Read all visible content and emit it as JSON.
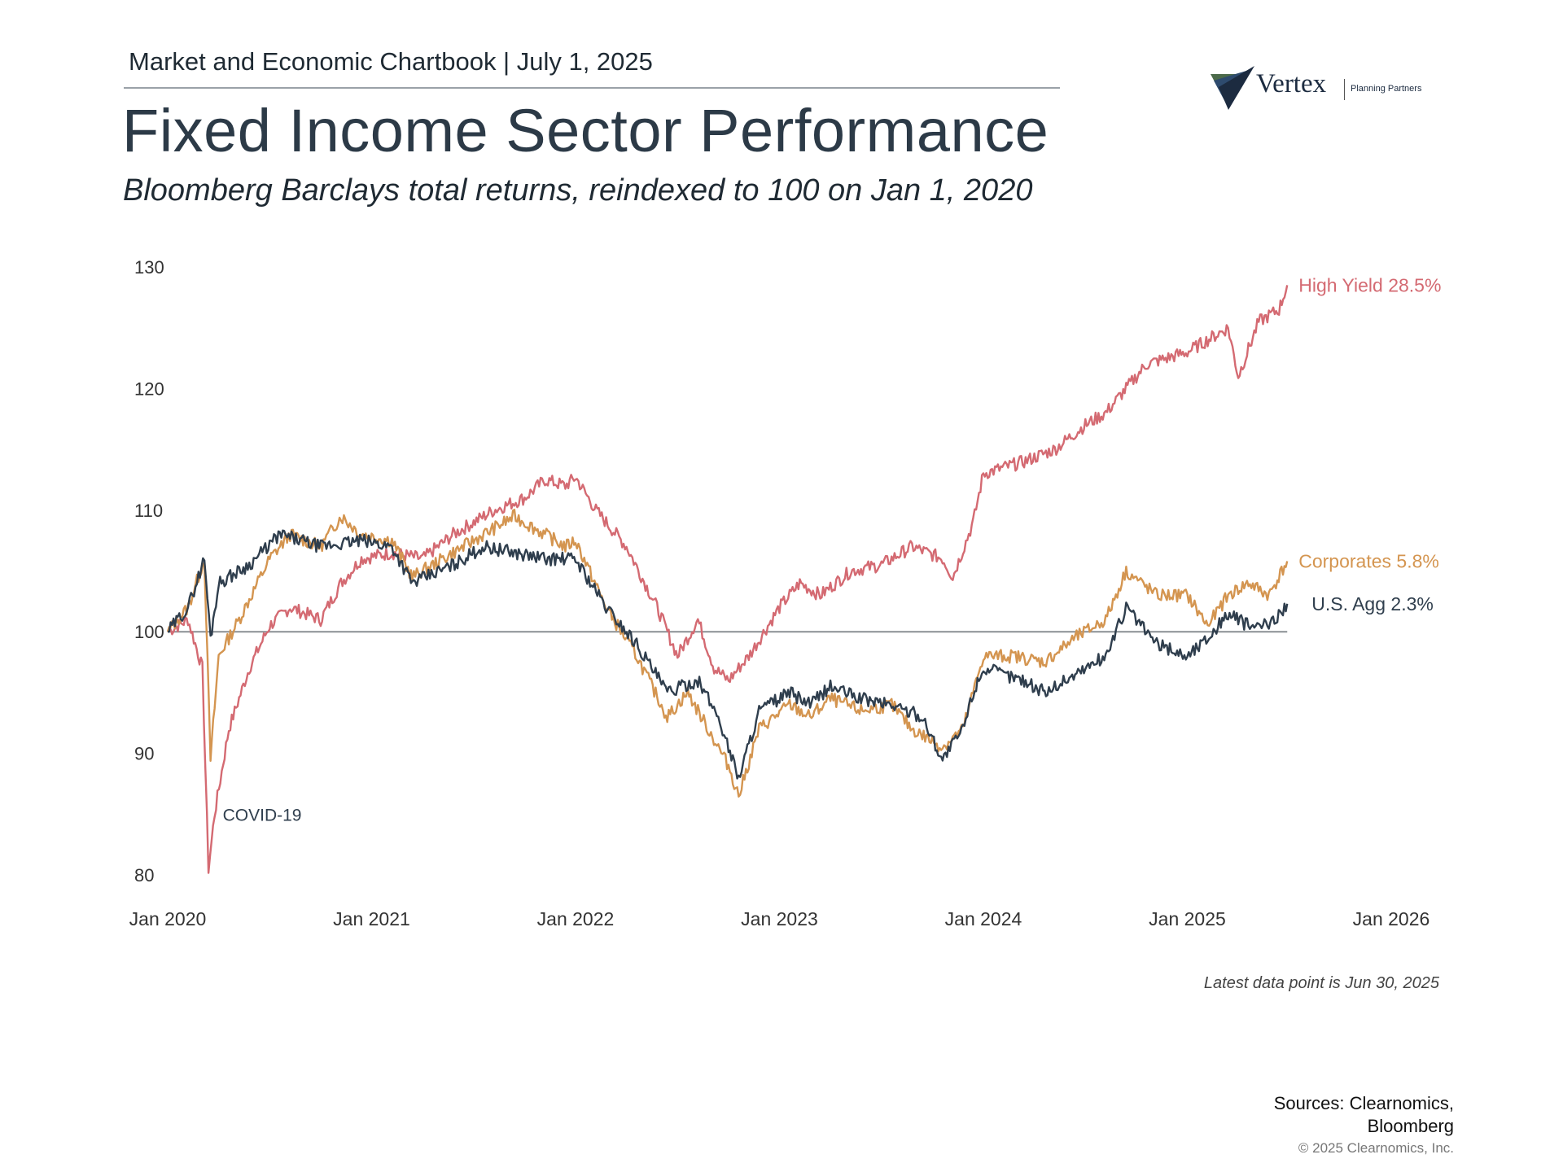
{
  "header": {
    "chartbook": "Market and Economic Chartbook | July 1, 2025",
    "title": "Fixed Income Sector Performance",
    "subtitle": "Bloomberg Barclays total returns, reindexed to 100 on Jan 1, 2020"
  },
  "logo": {
    "name": "Vertex",
    "tagline": "Planning Partners"
  },
  "chart_data": {
    "type": "line",
    "xlim": [
      2020.0,
      2026.0
    ],
    "ylim": [
      80,
      130
    ],
    "yticks": [
      "130",
      "120",
      "110",
      "100",
      "90",
      "80"
    ],
    "xticks": [
      {
        "x": 2020.0,
        "label": "Jan 2020"
      },
      {
        "x": 2021.0,
        "label": "Jan 2021"
      },
      {
        "x": 2022.0,
        "label": "Jan 2022"
      },
      {
        "x": 2023.0,
        "label": "Jan 2023"
      },
      {
        "x": 2024.0,
        "label": "Jan 2024"
      },
      {
        "x": 2025.0,
        "label": "Jan 2025"
      },
      {
        "x": 2026.0,
        "label": "Jan 2026"
      }
    ],
    "baseline": 100,
    "series": [
      {
        "name": "High Yield 28.5%",
        "color": "#d46a72",
        "points": [
          [
            2020.0,
            100
          ],
          [
            2020.1,
            101
          ],
          [
            2020.17,
            97
          ],
          [
            2020.2,
            80.5
          ],
          [
            2020.23,
            85
          ],
          [
            2020.3,
            92
          ],
          [
            2020.4,
            97
          ],
          [
            2020.5,
            100.5
          ],
          [
            2020.6,
            102
          ],
          [
            2020.75,
            101
          ],
          [
            2020.85,
            104
          ],
          [
            2020.95,
            106
          ],
          [
            2021.1,
            106.5
          ],
          [
            2021.25,
            106
          ],
          [
            2021.4,
            108
          ],
          [
            2021.6,
            110
          ],
          [
            2021.75,
            111
          ],
          [
            2021.85,
            112.5
          ],
          [
            2021.95,
            112
          ],
          [
            2022.0,
            112.7
          ],
          [
            2022.1,
            110
          ],
          [
            2022.25,
            107
          ],
          [
            2022.4,
            102
          ],
          [
            2022.5,
            98
          ],
          [
            2022.6,
            101
          ],
          [
            2022.68,
            97
          ],
          [
            2022.75,
            96
          ],
          [
            2022.85,
            98
          ],
          [
            2023.0,
            102
          ],
          [
            2023.1,
            104
          ],
          [
            2023.2,
            103
          ],
          [
            2023.35,
            105
          ],
          [
            2023.5,
            105.5
          ],
          [
            2023.65,
            107
          ],
          [
            2023.8,
            106
          ],
          [
            2023.85,
            104.5
          ],
          [
            2023.95,
            109
          ],
          [
            2024.0,
            113
          ],
          [
            2024.2,
            114
          ],
          [
            2024.35,
            115
          ],
          [
            2024.5,
            117
          ],
          [
            2024.6,
            118
          ],
          [
            2024.7,
            120
          ],
          [
            2024.8,
            122
          ],
          [
            2025.0,
            123
          ],
          [
            2025.1,
            124
          ],
          [
            2025.2,
            125
          ],
          [
            2025.25,
            121
          ],
          [
            2025.35,
            125.5
          ],
          [
            2025.45,
            126.5
          ],
          [
            2025.49,
            128.5
          ]
        ]
      },
      {
        "name": "Corporates 5.8%",
        "color": "#d49550",
        "points": [
          [
            2020.0,
            100
          ],
          [
            2020.1,
            102
          ],
          [
            2020.18,
            106
          ],
          [
            2020.21,
            89.5
          ],
          [
            2020.25,
            98
          ],
          [
            2020.35,
            101
          ],
          [
            2020.5,
            106
          ],
          [
            2020.6,
            108
          ],
          [
            2020.75,
            107
          ],
          [
            2020.85,
            109.5
          ],
          [
            2020.95,
            108
          ],
          [
            2021.1,
            107.5
          ],
          [
            2021.2,
            104.5
          ],
          [
            2021.4,
            106.5
          ],
          [
            2021.6,
            108.5
          ],
          [
            2021.7,
            109.5
          ],
          [
            2021.85,
            108
          ],
          [
            2021.95,
            107
          ],
          [
            2022.0,
            107.5
          ],
          [
            2022.15,
            102
          ],
          [
            2022.3,
            98
          ],
          [
            2022.45,
            93
          ],
          [
            2022.55,
            95
          ],
          [
            2022.65,
            92
          ],
          [
            2022.75,
            89
          ],
          [
            2022.8,
            86.5
          ],
          [
            2022.9,
            92
          ],
          [
            2023.05,
            94
          ],
          [
            2023.15,
            93
          ],
          [
            2023.25,
            94.5
          ],
          [
            2023.4,
            93.5
          ],
          [
            2023.55,
            94
          ],
          [
            2023.65,
            92
          ],
          [
            2023.8,
            90.5
          ],
          [
            2023.9,
            92
          ],
          [
            2023.95,
            95
          ],
          [
            2024.0,
            98
          ],
          [
            2024.15,
            98
          ],
          [
            2024.3,
            97.5
          ],
          [
            2024.45,
            99.5
          ],
          [
            2024.6,
            101
          ],
          [
            2024.7,
            105
          ],
          [
            2024.85,
            103
          ],
          [
            2025.0,
            103
          ],
          [
            2025.1,
            100.5
          ],
          [
            2025.2,
            103
          ],
          [
            2025.3,
            104
          ],
          [
            2025.4,
            103
          ],
          [
            2025.49,
            105.8
          ]
        ]
      },
      {
        "name": "U.S. Agg 2.3%",
        "color": "#2f3e4d",
        "points": [
          [
            2020.0,
            100
          ],
          [
            2020.1,
            102
          ],
          [
            2020.18,
            106
          ],
          [
            2020.21,
            99.5
          ],
          [
            2020.25,
            104
          ],
          [
            2020.4,
            105.5
          ],
          [
            2020.55,
            108
          ],
          [
            2020.75,
            107
          ],
          [
            2020.95,
            107.5
          ],
          [
            2021.1,
            107
          ],
          [
            2021.2,
            104
          ],
          [
            2021.4,
            105.5
          ],
          [
            2021.55,
            107
          ],
          [
            2021.7,
            106.5
          ],
          [
            2021.85,
            106
          ],
          [
            2022.0,
            106
          ],
          [
            2022.15,
            102
          ],
          [
            2022.3,
            99
          ],
          [
            2022.45,
            95
          ],
          [
            2022.6,
            96
          ],
          [
            2022.7,
            93
          ],
          [
            2022.8,
            88
          ],
          [
            2022.9,
            93.5
          ],
          [
            2023.05,
            95
          ],
          [
            2023.15,
            94
          ],
          [
            2023.25,
            95.5
          ],
          [
            2023.4,
            94.5
          ],
          [
            2023.55,
            94
          ],
          [
            2023.7,
            93
          ],
          [
            2023.8,
            89.5
          ],
          [
            2023.9,
            92
          ],
          [
            2023.95,
            95
          ],
          [
            2024.0,
            97
          ],
          [
            2024.2,
            96
          ],
          [
            2024.3,
            95
          ],
          [
            2024.45,
            96.5
          ],
          [
            2024.6,
            98
          ],
          [
            2024.7,
            102
          ],
          [
            2024.85,
            99
          ],
          [
            2025.0,
            98
          ],
          [
            2025.1,
            99.5
          ],
          [
            2025.2,
            101.5
          ],
          [
            2025.3,
            100.5
          ],
          [
            2025.4,
            100.5
          ],
          [
            2025.49,
            102.3
          ]
        ]
      }
    ],
    "annotations": [
      {
        "text": "COVID-19",
        "x": 2020.27,
        "y": 85
      }
    ]
  },
  "footer": {
    "latest": "Latest data point is Jun 30, 2025",
    "sources_line1": "Sources: Clearnomics,",
    "sources_line2": "Bloomberg",
    "copyright": "© 2025 Clearnomics, Inc."
  }
}
